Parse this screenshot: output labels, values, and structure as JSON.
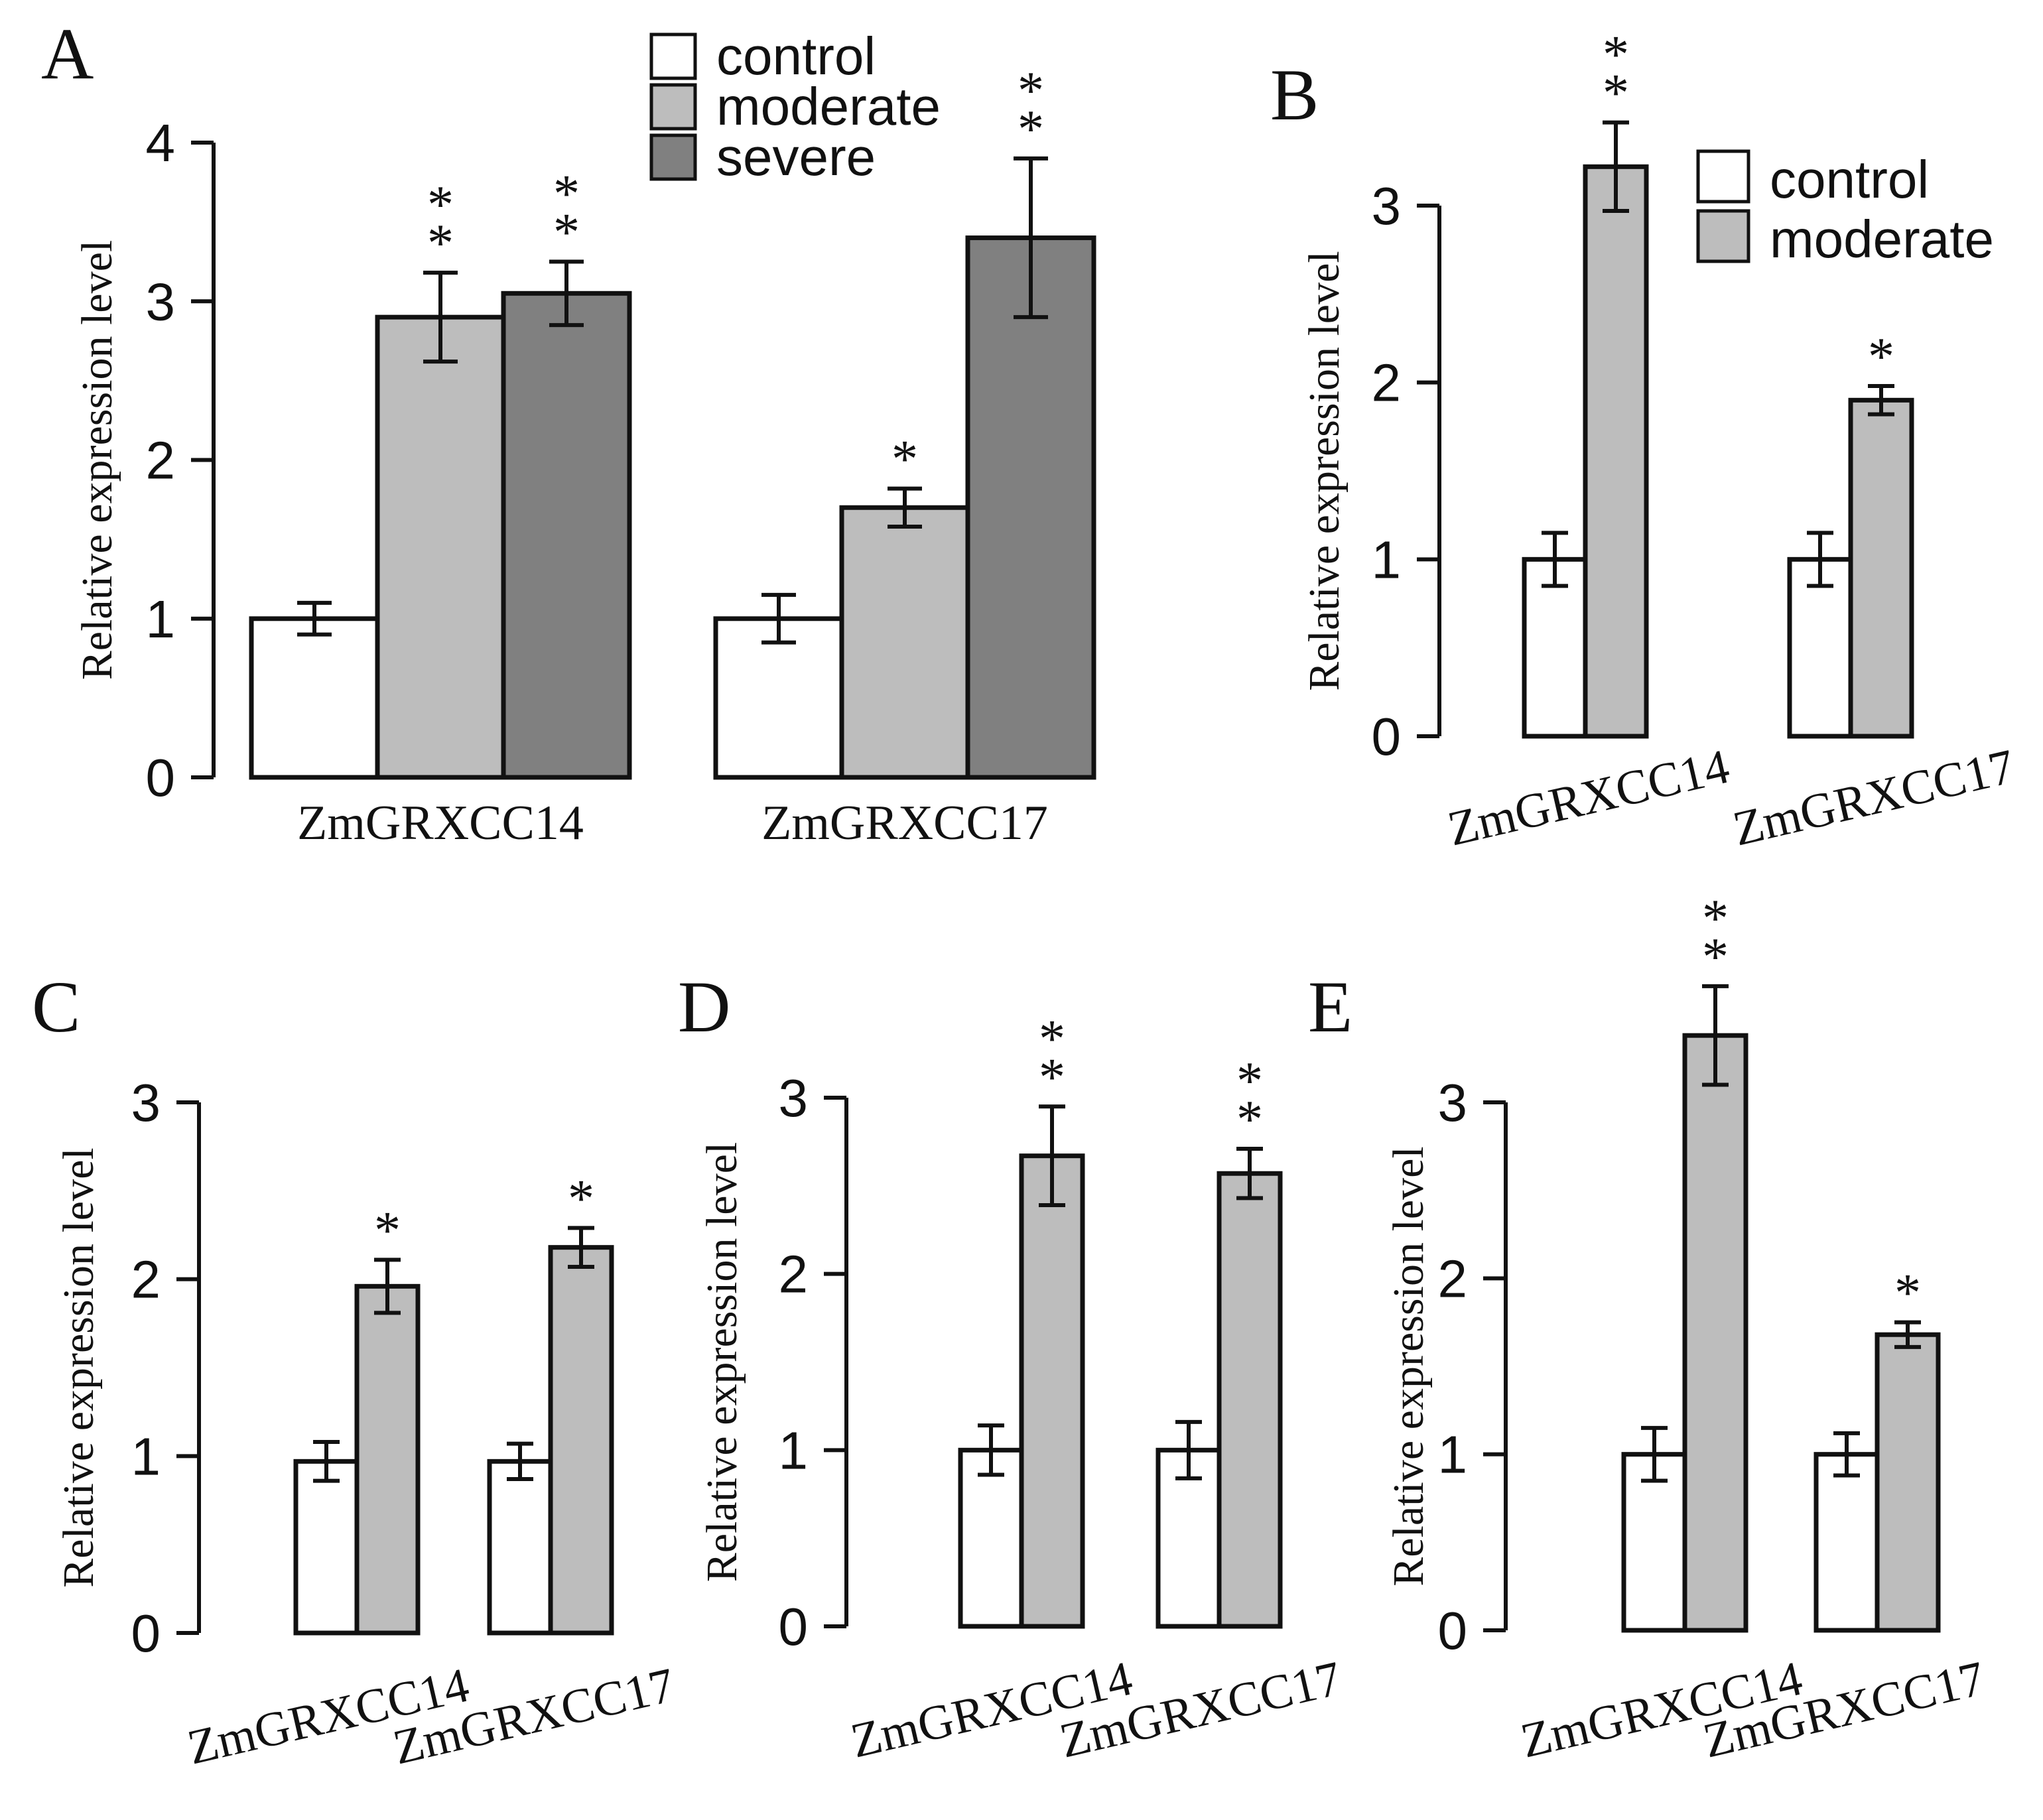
{
  "colors": {
    "control": "#ffffff",
    "moderate": "#bdbdbd",
    "severe": "#808080",
    "stroke": "#111111"
  },
  "chart_data": [
    {
      "panel": "A",
      "type": "bar",
      "ylabel": "Relative expression level",
      "ylim": [
        0,
        4
      ],
      "yticks": [
        "0",
        "1",
        "2",
        "3",
        "4"
      ],
      "legend": [
        "control",
        "moderate",
        "severe"
      ],
      "legend_position": "top",
      "categories": [
        "ZmGRXCC14",
        "ZmGRXCC17"
      ],
      "series": [
        {
          "name": "control",
          "values": [
            1.0,
            1.0
          ],
          "errors": [
            0.1,
            0.15
          ],
          "sig": [
            "",
            ""
          ]
        },
        {
          "name": "moderate",
          "values": [
            2.9,
            1.7
          ],
          "errors": [
            0.28,
            0.12
          ],
          "sig": [
            "**",
            "*"
          ]
        },
        {
          "name": "severe",
          "values": [
            3.05,
            3.4
          ],
          "errors": [
            0.2,
            0.5
          ],
          "sig": [
            "**",
            "**"
          ]
        }
      ]
    },
    {
      "panel": "B",
      "type": "bar",
      "ylabel": "Relative expression level",
      "ylim": [
        0,
        3
      ],
      "yticks": [
        "0",
        "1",
        "2",
        "3"
      ],
      "legend": [
        "control",
        "moderate"
      ],
      "legend_position": "top-right",
      "categories": [
        "ZmGRXCC14",
        "ZmGRXCC17"
      ],
      "series": [
        {
          "name": "control",
          "values": [
            1.0,
            1.0
          ],
          "errors": [
            0.15,
            0.15
          ],
          "sig": [
            "",
            ""
          ]
        },
        {
          "name": "moderate",
          "values": [
            3.22,
            1.9
          ],
          "errors": [
            0.25,
            0.08
          ],
          "sig": [
            "**",
            "*"
          ]
        }
      ]
    },
    {
      "panel": "C",
      "type": "bar",
      "ylabel": "Relative expression level",
      "ylim": [
        0,
        3
      ],
      "yticks": [
        "0",
        "1",
        "2",
        "3"
      ],
      "categories": [
        "ZmGRXCC14",
        "ZmGRXCC17"
      ],
      "series": [
        {
          "name": "control",
          "values": [
            0.97,
            0.97
          ],
          "errors": [
            0.11,
            0.1
          ],
          "sig": [
            "",
            ""
          ]
        },
        {
          "name": "moderate",
          "values": [
            1.96,
            2.18
          ],
          "errors": [
            0.15,
            0.11
          ],
          "sig": [
            "*",
            "*"
          ]
        }
      ]
    },
    {
      "panel": "D",
      "type": "bar",
      "ylabel": "Relative expression level",
      "ylim": [
        0,
        3
      ],
      "yticks": [
        "0",
        "1",
        "2",
        "3"
      ],
      "categories": [
        "ZmGRXCC14",
        "ZmGRXCC17"
      ],
      "series": [
        {
          "name": "control",
          "values": [
            1.0,
            1.0
          ],
          "errors": [
            0.14,
            0.16
          ],
          "sig": [
            "",
            ""
          ]
        },
        {
          "name": "moderate",
          "values": [
            2.67,
            2.57
          ],
          "errors": [
            0.28,
            0.14
          ],
          "sig": [
            "**",
            "**"
          ]
        }
      ]
    },
    {
      "panel": "E",
      "type": "bar",
      "ylabel": "Relative expression level",
      "ylim": [
        0,
        3
      ],
      "yticks": [
        "0",
        "1",
        "2",
        "3"
      ],
      "categories": [
        "ZmGRXCC14",
        "ZmGRXCC17"
      ],
      "series": [
        {
          "name": "control",
          "values": [
            1.0,
            1.0
          ],
          "errors": [
            0.15,
            0.12
          ],
          "sig": [
            "",
            ""
          ]
        },
        {
          "name": "moderate",
          "values": [
            3.38,
            1.68
          ],
          "errors": [
            0.28,
            0.07
          ],
          "sig": [
            "**",
            "*"
          ]
        }
      ]
    }
  ]
}
